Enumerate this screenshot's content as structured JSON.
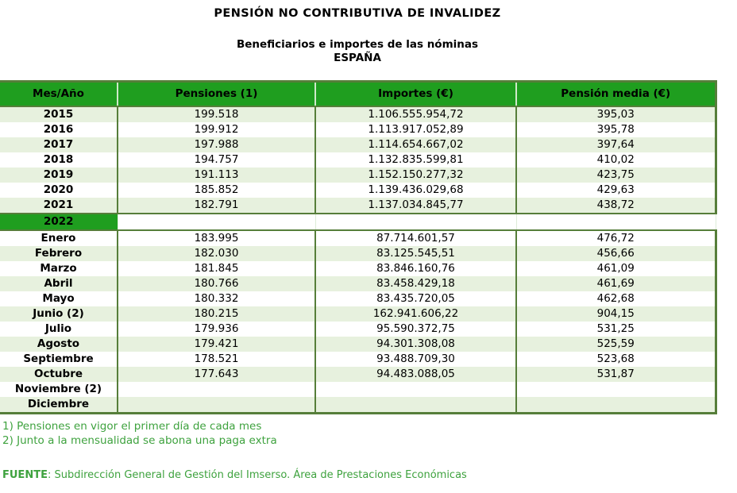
{
  "title": "PENSIÓN NO CONTRIBUTIVA DE INVALIDEZ",
  "subtitle": "Beneficiarios e importes de las nóminas",
  "region": "ESPAÑA",
  "colors": {
    "header_green": "#1f9e1f",
    "border_green": "#567e3a",
    "stripe_green": "#e7f1de",
    "note_green": "#3ea23e"
  },
  "table": {
    "columns": [
      "Mes/Año",
      "Pensiones (1)",
      "Importes (€)",
      "Pensión media (€)"
    ],
    "year_rows": [
      {
        "label": "2015",
        "pensiones": "199.518",
        "importes": "1.106.555.954,72",
        "media": "395,03"
      },
      {
        "label": "2016",
        "pensiones": "199.912",
        "importes": "1.113.917.052,89",
        "media": "395,78"
      },
      {
        "label": "2017",
        "pensiones": "197.988",
        "importes": "1.114.654.667,02",
        "media": "397,64"
      },
      {
        "label": "2018",
        "pensiones": "194.757",
        "importes": "1.132.835.599,81",
        "media": "410,02"
      },
      {
        "label": "2019",
        "pensiones": "191.113",
        "importes": "1.152.150.277,32",
        "media": "423,75"
      },
      {
        "label": "2020",
        "pensiones": "185.852",
        "importes": "1.139.436.029,68",
        "media": "429,63"
      },
      {
        "label": "2021",
        "pensiones": "182.791",
        "importes": "1.137.034.845,77",
        "media": "438,72"
      }
    ],
    "separator_row": {
      "label": "2022",
      "pensiones": "",
      "importes": "",
      "media": ""
    },
    "month_rows": [
      {
        "label": "Enero",
        "pensiones": "183.995",
        "importes": "87.714.601,57",
        "media": "476,72"
      },
      {
        "label": "Febrero",
        "pensiones": "182.030",
        "importes": "83.125.545,51",
        "media": "456,66"
      },
      {
        "label": "Marzo",
        "pensiones": "181.845",
        "importes": "83.846.160,76",
        "media": "461,09"
      },
      {
        "label": "Abril",
        "pensiones": "180.766",
        "importes": "83.458.429,18",
        "media": "461,69"
      },
      {
        "label": "Mayo",
        "pensiones": "180.332",
        "importes": "83.435.720,05",
        "media": "462,68"
      },
      {
        "label": "Junio (2)",
        "pensiones": "180.215",
        "importes": "162.941.606,22",
        "media": "904,15"
      },
      {
        "label": "Julio",
        "pensiones": "179.936",
        "importes": "95.590.372,75",
        "media": "531,25"
      },
      {
        "label": "Agosto",
        "pensiones": "179.421",
        "importes": "94.301.308,08",
        "media": "525,59"
      },
      {
        "label": "Septiembre",
        "pensiones": "178.521",
        "importes": "93.488.709,30",
        "media": "523,68"
      },
      {
        "label": "Octubre",
        "pensiones": "177.643",
        "importes": "94.483.088,05",
        "media": "531,87"
      },
      {
        "label": "Noviembre (2)",
        "pensiones": "",
        "importes": "",
        "media": ""
      },
      {
        "label": "Diciembre",
        "pensiones": "",
        "importes": "",
        "media": ""
      }
    ]
  },
  "notes": [
    "1) Pensiones en vigor el primer día de cada mes",
    "2) Junto a la mensualidad se abona una paga extra"
  ],
  "source": {
    "label": "FUENTE",
    "text": ": Subdirección General de Gestión del Imserso. Área de Prestaciones Económicas"
  }
}
